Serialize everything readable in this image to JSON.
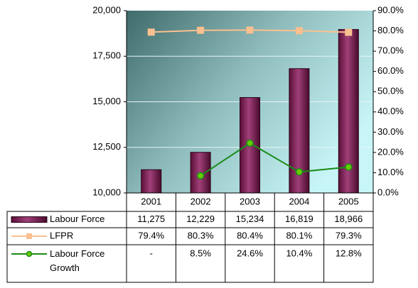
{
  "chart_data": {
    "type": "bar",
    "categories": [
      "2001",
      "2002",
      "2003",
      "2004",
      "2005"
    ],
    "series": [
      {
        "name": "Labour Force",
        "color": "#7b2150",
        "values": [
          11275,
          12229,
          15234,
          16819,
          18966
        ],
        "value_labels": [
          "11,275",
          "12,229",
          "15,234",
          "16,819",
          "18,966"
        ]
      },
      {
        "name": "LFPR",
        "color": "#fbc08f",
        "axis": "y2",
        "type": "line",
        "marker": "square",
        "values": [
          79.4,
          80.3,
          80.4,
          80.1,
          79.3
        ],
        "value_labels": [
          "79.4%",
          "80.3%",
          "80.4%",
          "80.1%",
          "79.3%"
        ]
      },
      {
        "name": "Labour Force Growth",
        "color": "#1a8c1a",
        "axis": "y2",
        "type": "line",
        "marker": "circle",
        "values": [
          null,
          8.5,
          24.6,
          10.4,
          12.8
        ],
        "value_labels": [
          "-",
          "8.5%",
          "24.6%",
          "10.4%",
          "12.8%"
        ]
      }
    ],
    "ylim": [
      10000,
      20000
    ],
    "yticks": [
      {
        "value": 10000,
        "label": "10,000"
      },
      {
        "value": 12500,
        "label": "12,500"
      },
      {
        "value": 15000,
        "label": "15,000"
      },
      {
        "value": 17500,
        "label": "17,500"
      },
      {
        "value": 20000,
        "label": "20,000"
      }
    ],
    "y2lim": [
      0,
      90
    ],
    "y2ticks": [
      {
        "value": 0,
        "label": "0.0%"
      },
      {
        "value": 10,
        "label": "10.0%"
      },
      {
        "value": 20,
        "label": "20.0%"
      },
      {
        "value": 30,
        "label": "30.0%"
      },
      {
        "value": 40,
        "label": "40.0%"
      },
      {
        "value": 50,
        "label": "50.0%"
      },
      {
        "value": 60,
        "label": "60.0%"
      },
      {
        "value": 70,
        "label": "70.0%"
      },
      {
        "value": 80,
        "label": "80.0%"
      },
      {
        "value": 90,
        "label": "90.0%"
      }
    ],
    "grid": true,
    "data_table": true
  }
}
